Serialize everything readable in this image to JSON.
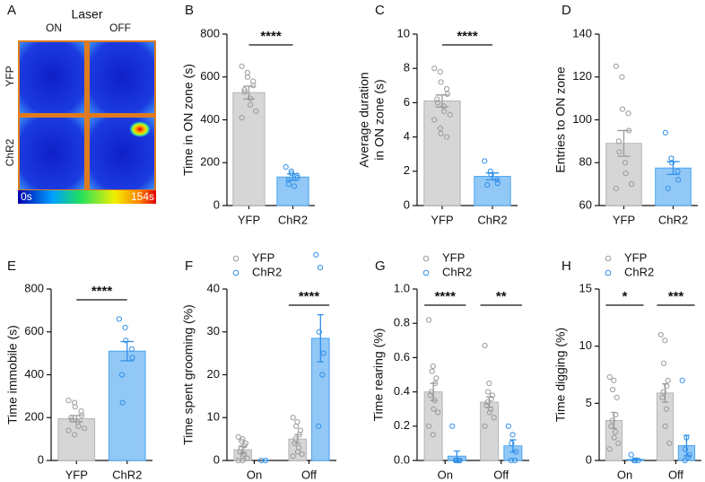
{
  "chart_data": [
    {
      "type": "heatmap",
      "label": "A",
      "title": "Laser",
      "columns": [
        "ON",
        "OFF"
      ],
      "rows": [
        "YFP",
        "ChR2"
      ],
      "colorbar_labels": [
        "0s",
        "154s"
      ]
    },
    {
      "type": "bar",
      "label": "B",
      "ylabel": "Time in ON zone  (s)",
      "categories": [
        "YFP",
        "ChR2"
      ],
      "values": [
        527,
        133
      ],
      "errors": [
        30,
        15
      ],
      "colors": [
        "#d6d6d6",
        "#92c8f6"
      ],
      "edge_colors": [
        "#b5b5b5",
        "#4aa3ef"
      ],
      "point_colors": [
        "#9a9a9a",
        "#2f8fe8"
      ],
      "points": [
        [
          650,
          620,
          600,
          580,
          560,
          540,
          530,
          500,
          470,
          440,
          410
        ],
        [
          180,
          160,
          150,
          140,
          130,
          120,
          100,
          90
        ]
      ],
      "ylim": [
        0,
        800
      ],
      "yticks": [
        0,
        200,
        400,
        600,
        800
      ],
      "significance": "****"
    },
    {
      "type": "bar",
      "label": "C",
      "ylabel": [
        "Average duration",
        "in ON zone (s)"
      ],
      "categories": [
        "YFP",
        "ChR2"
      ],
      "values": [
        6.1,
        1.7
      ],
      "errors": [
        0.35,
        0.2
      ],
      "colors": [
        "#d6d6d6",
        "#92c8f6"
      ],
      "edge_colors": [
        "#b5b5b5",
        "#4aa3ef"
      ],
      "point_colors": [
        "#9a9a9a",
        "#2f8fe8"
      ],
      "points": [
        [
          8.0,
          7.8,
          7.2,
          6.8,
          6.5,
          6.2,
          6.0,
          5.8,
          5.5,
          5.3,
          5.0,
          4.5,
          4.2,
          4.0
        ],
        [
          2.6,
          2.0,
          1.8,
          1.5,
          1.3,
          1.2
        ]
      ],
      "ylim": [
        0,
        10
      ],
      "yticks": [
        0,
        2,
        4,
        6,
        8,
        10
      ],
      "significance": "****"
    },
    {
      "type": "bar",
      "label": "D",
      "ylabel": "Entries to ON zone",
      "categories": [
        "YFP",
        "ChR2"
      ],
      "values": [
        89,
        77.5
      ],
      "errors": [
        6,
        3
      ],
      "colors": [
        "#d6d6d6",
        "#92c8f6"
      ],
      "edge_colors": [
        "#b5b5b5",
        "#4aa3ef"
      ],
      "point_colors": [
        "#9a9a9a",
        "#2f8fe8"
      ],
      "points": [
        [
          125,
          120,
          105,
          103,
          95,
          90,
          85,
          80,
          75,
          70,
          68
        ],
        [
          94,
          82,
          80,
          76,
          72,
          68
        ]
      ],
      "ylim": [
        60,
        140
      ],
      "yticks": [
        60,
        80,
        100,
        120,
        140
      ]
    },
    {
      "type": "bar",
      "label": "E",
      "ylabel": "Time  immobile (s)",
      "categories": [
        "YFP",
        "ChR2"
      ],
      "values": [
        195,
        510
      ],
      "errors": [
        15,
        45
      ],
      "colors": [
        "#d6d6d6",
        "#92c8f6"
      ],
      "edge_colors": [
        "#b5b5b5",
        "#4aa3ef"
      ],
      "point_colors": [
        "#9a9a9a",
        "#2f8fe8"
      ],
      "points": [
        [
          280,
          270,
          250,
          230,
          210,
          200,
          190,
          180,
          160,
          150,
          140,
          120
        ],
        [
          660,
          620,
          560,
          520,
          480,
          400,
          270
        ]
      ],
      "ylim": [
        0,
        800
      ],
      "yticks": [
        0,
        200,
        400,
        600,
        800
      ],
      "significance": "****"
    },
    {
      "type": "grouped_bar",
      "label": "F",
      "ylabel": "Time spent grooming (%)",
      "categories": [
        "On",
        "Off"
      ],
      "series": [
        {
          "name": "YFP",
          "color": "#d6d6d6",
          "edge_color": "#b5b5b5",
          "point_color": "#9a9a9a",
          "values": [
            2.5,
            5.0
          ],
          "errors": [
            0.7,
            1.0
          ],
          "points": [
            [
              5.5,
              5,
              4.5,
              4,
              3.5,
              3,
              2,
              1.5,
              1,
              0.5,
              0,
              0
            ],
            [
              10,
              9,
              8,
              7,
              6,
              5,
              4,
              3,
              2,
              1.5,
              1
            ]
          ]
        },
        {
          "name": "ChR2",
          "color": "#92c8f6",
          "edge_color": "#4aa3ef",
          "point_color": "#2f8fe8",
          "values": [
            0,
            28.5
          ],
          "errors": [
            0,
            5.5
          ],
          "points": [
            [
              0,
              0
            ],
            [
              48,
              45,
              30,
              25,
              20,
              8
            ]
          ]
        }
      ],
      "ylim": [
        0,
        40
      ],
      "yticks": [
        0,
        10,
        20,
        30,
        40
      ],
      "significance": [
        null,
        "****"
      ],
      "legend": "top-left"
    },
    {
      "type": "grouped_bar",
      "label": "G",
      "ylabel": "Time rearing (%)",
      "categories": [
        "On",
        "Off"
      ],
      "series": [
        {
          "name": "YFP",
          "color": "#d6d6d6",
          "edge_color": "#b5b5b5",
          "point_color": "#9a9a9a",
          "values": [
            0.4,
            0.34
          ],
          "errors": [
            0.05,
            0.03
          ],
          "points": [
            [
              0.82,
              0.55,
              0.52,
              0.48,
              0.45,
              0.4,
              0.38,
              0.35,
              0.3,
              0.28,
              0.2,
              0.15
            ],
            [
              0.67,
              0.45,
              0.4,
              0.38,
              0.36,
              0.34,
              0.32,
              0.3,
              0.28,
              0.25,
              0.2
            ]
          ]
        },
        {
          "name": "ChR2",
          "color": "#92c8f6",
          "edge_color": "#4aa3ef",
          "point_color": "#2f8fe8",
          "values": [
            0.025,
            0.085
          ],
          "errors": [
            0.03,
            0.035
          ],
          "points": [
            [
              0.2,
              0,
              0,
              0,
              0
            ],
            [
              0.2,
              0.15,
              0.1,
              0.05,
              0,
              0
            ]
          ]
        }
      ],
      "ylim": [
        0,
        1
      ],
      "yticks": [
        {
          "value": 0,
          "label": "0.0"
        },
        0.2,
        0.4,
        0.6,
        0.8,
        {
          "value": 1,
          "label": "1.0"
        }
      ],
      "significance": [
        "****",
        "**"
      ],
      "legend": "top-left"
    },
    {
      "type": "grouped_bar",
      "label": "H",
      "ylabel": "Time digging (%)",
      "categories": [
        "On",
        "Off"
      ],
      "series": [
        {
          "name": "YFP",
          "color": "#d6d6d6",
          "edge_color": "#b5b5b5",
          "point_color": "#9a9a9a",
          "values": [
            3.5,
            5.9
          ],
          "errors": [
            0.7,
            0.8
          ],
          "points": [
            [
              7.3,
              7,
              6.2,
              5.5,
              4,
              3.5,
              3,
              2.5,
              2,
              1.5,
              1
            ],
            [
              11,
              10.5,
              8.5,
              7,
              6.5,
              6,
              5.5,
              4.5,
              3,
              1.5
            ]
          ]
        },
        {
          "name": "ChR2",
          "color": "#92c8f6",
          "edge_color": "#4aa3ef",
          "point_color": "#2f8fe8",
          "values": [
            0.1,
            1.3
          ],
          "errors": [
            0.1,
            0.9
          ],
          "points": [
            [
              0.5,
              0,
              0,
              0
            ],
            [
              7,
              2,
              1,
              0.5,
              0.3,
              0
            ]
          ]
        }
      ],
      "ylim": [
        0,
        15
      ],
      "yticks": [
        0,
        5,
        10,
        15
      ],
      "significance": [
        "*",
        "***"
      ],
      "legend": "top-left"
    }
  ]
}
